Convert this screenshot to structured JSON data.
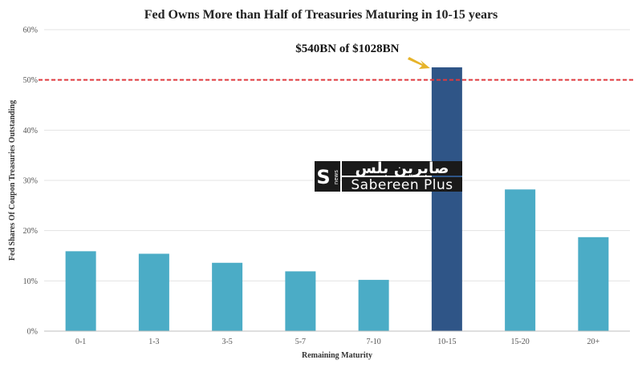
{
  "chart_data": {
    "type": "bar",
    "title": "Fed Owns More than Half of Treasuries Maturing in 10-15 years",
    "xlabel": "Remaining Maturity",
    "ylabel": "Fed Shares Of Coupon Treasuries Outstanding",
    "categories": [
      "0-1",
      "1-3",
      "3-5",
      "5-7",
      "7-10",
      "10-15",
      "15-20",
      "20+"
    ],
    "values": [
      15.9,
      15.4,
      13.6,
      11.9,
      10.2,
      52.5,
      28.2,
      18.7
    ],
    "highlight_category": "10-15",
    "ylim": [
      0,
      60
    ],
    "yticks": [
      0,
      10,
      20,
      30,
      40,
      50,
      60
    ],
    "ytick_labels": [
      "0%",
      "10%",
      "20%",
      "30%",
      "40%",
      "50%",
      "60%"
    ],
    "reference_line": {
      "value": 50,
      "color": "#e0393e",
      "style": "dashed"
    },
    "annotation": {
      "text": "$540BN of $1028BN",
      "points_to": "10-15"
    },
    "grid": true,
    "colors": {
      "bar": "#4bacc6",
      "highlight": "#2f5587",
      "annotation_arrow": "#e6b329"
    }
  },
  "watermark": {
    "arabic": "صابرين بلس",
    "latin": "Sabereen Plus",
    "news": "news",
    "logo_letter": "S"
  }
}
